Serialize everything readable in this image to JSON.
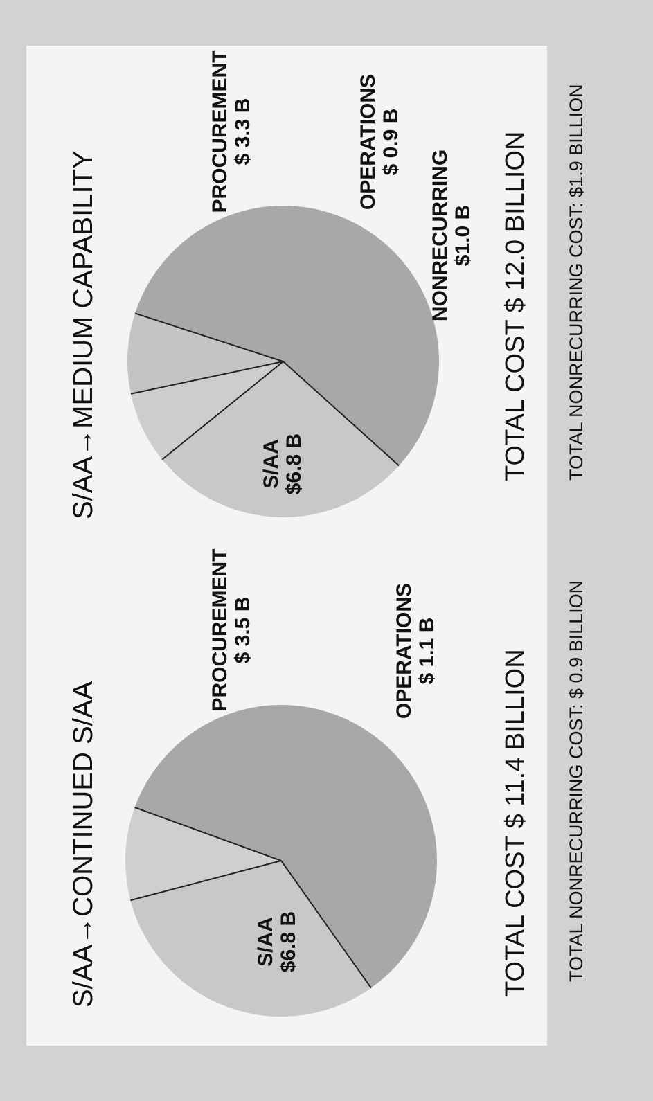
{
  "chart_data": [
    {
      "type": "pie",
      "title": "S/AA→CONTINUED S/AA",
      "slices": [
        {
          "label": "S/AA",
          "value_text": "$6.8 B",
          "value": 6.8,
          "color": "#a8a8a8"
        },
        {
          "label": "PROCUREMENT",
          "value_text": "$ 3.5 B",
          "value": 3.5,
          "color": "#c8c8c8"
        },
        {
          "label": "OPERATIONS",
          "value_text": "$ 1.1 B",
          "value": 1.1,
          "color": "#cfcfcf"
        }
      ],
      "total": "TOTAL COST $ 11.4 BILLION",
      "nonrecurring": "TOTAL NONRECURRING COST: $ 0.9 BILLION"
    },
    {
      "type": "pie",
      "title": "S/AA→MEDIUM CAPABILITY",
      "slices": [
        {
          "label": "S/AA",
          "value_text": "$6.8 B",
          "value": 6.8,
          "color": "#a8a8a8"
        },
        {
          "label": "PROCUREMENT",
          "value_text": "$ 3.3 B",
          "value": 3.3,
          "color": "#c8c8c8"
        },
        {
          "label": "OPERATIONS",
          "value_text": "$ 0.9 B",
          "value": 0.9,
          "color": "#cdcdcd"
        },
        {
          "label": "NONRECURRING",
          "value_text": "$1.0 B",
          "value": 1.0,
          "color": "#c4c4c4"
        }
      ],
      "total": "TOTAL COST $ 12.0 BILLION",
      "nonrecurring": "TOTAL NONRECURRING COST: $1.9 BILLION"
    }
  ]
}
